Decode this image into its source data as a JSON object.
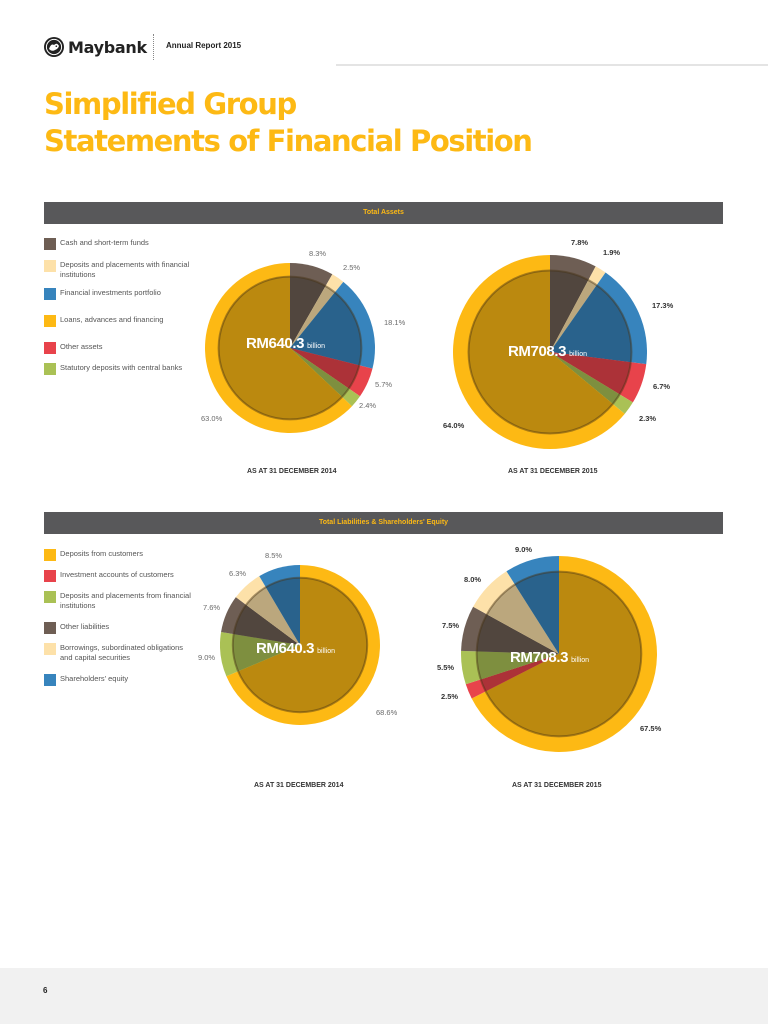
{
  "header": {
    "brand": "Maybank",
    "report": "Annual Report 2015"
  },
  "title": {
    "line1": "Simplified Group",
    "line2": "Statements of Financial Position"
  },
  "page_number": "6",
  "sections": [
    {
      "heading": "Total Assets",
      "legend": [
        {
          "label": "Cash and short-term funds",
          "color": "#6e5e54"
        },
        {
          "label": "Deposits and placements with financial institutions",
          "color": "#fde1a9"
        },
        {
          "label": "Financial investments portfolio",
          "color": "#3784bd"
        },
        {
          "label": "Loans, advances and financing",
          "color": "#fdb914"
        },
        {
          "label": "Other assets",
          "color": "#e8434b"
        },
        {
          "label": "Statutory deposits with central banks",
          "color": "#aac155"
        }
      ]
    },
    {
      "heading": "Total Liabilities & Shareholders' Equity",
      "legend": [
        {
          "label": "Deposits from customers",
          "color": "#fdb914"
        },
        {
          "label": "Investment accounts of customers",
          "color": "#e8434b"
        },
        {
          "label": "Deposits and placements from financial institutions",
          "color": "#aac155"
        },
        {
          "label": "Other liabilities",
          "color": "#6e5e54"
        },
        {
          "label": "Borrowings, subordinated obligations and capital securities",
          "color": "#fde1a9"
        },
        {
          "label": "Shareholders' equity",
          "color": "#3784bd"
        }
      ]
    }
  ],
  "chart_data": [
    {
      "type": "pie",
      "group": "Total Assets",
      "caption": "AS AT 31 DECEMBER 2014",
      "total": "RM640.3",
      "unit": "billion",
      "slices": [
        {
          "label": "Cash and short-term funds",
          "value": 8.3,
          "text": "8.3%",
          "color": "#6e5e54"
        },
        {
          "label": "Deposits and placements with financial institutions",
          "value": 2.5,
          "text": "2.5%",
          "color": "#fde1a9"
        },
        {
          "label": "Financial investments portfolio",
          "value": 18.1,
          "text": "18.1%",
          "color": "#3784bd"
        },
        {
          "label": "Other assets",
          "value": 5.7,
          "text": "5.7%",
          "color": "#e8434b"
        },
        {
          "label": "Statutory deposits with central banks",
          "value": 2.4,
          "text": "2.4%",
          "color": "#aac155"
        },
        {
          "label": "Loans, advances and financing",
          "value": 63.0,
          "text": "63.0%",
          "color": "#fdb914"
        }
      ]
    },
    {
      "type": "pie",
      "group": "Total Assets",
      "caption": "AS AT 31 DECEMBER 2015",
      "total": "RM708.3",
      "unit": "billion",
      "slices": [
        {
          "label": "Cash and short-term funds",
          "value": 7.8,
          "text": "7.8%",
          "color": "#6e5e54"
        },
        {
          "label": "Deposits and placements with financial institutions",
          "value": 1.9,
          "text": "1.9%",
          "color": "#fde1a9"
        },
        {
          "label": "Financial investments portfolio",
          "value": 17.3,
          "text": "17.3%",
          "color": "#3784bd"
        },
        {
          "label": "Other assets",
          "value": 6.7,
          "text": "6.7%",
          "color": "#e8434b"
        },
        {
          "label": "Statutory deposits with central banks",
          "value": 2.3,
          "text": "2.3%",
          "color": "#aac155"
        },
        {
          "label": "Loans, advances and financing",
          "value": 64.0,
          "text": "64.0%",
          "color": "#fdb914"
        }
      ]
    },
    {
      "type": "pie",
      "group": "Total Liabilities & Shareholders' Equity",
      "caption": "AS AT 31 DECEMBER 2014",
      "total": "RM640.3",
      "unit": "billion",
      "slices": [
        {
          "label": "Deposits from customers",
          "value": 68.6,
          "text": "68.6%",
          "color": "#fdb914"
        },
        {
          "label": "Deposits and placements from financial institutions",
          "value": 9.0,
          "text": "9.0%",
          "color": "#aac155"
        },
        {
          "label": "Other liabilities",
          "value": 7.6,
          "text": "7.6%",
          "color": "#6e5e54"
        },
        {
          "label": "Borrowings, subordinated obligations and capital securities",
          "value": 6.3,
          "text": "6.3%",
          "color": "#fde1a9"
        },
        {
          "label": "Shareholders' equity",
          "value": 8.5,
          "text": "8.5%",
          "color": "#3784bd"
        }
      ]
    },
    {
      "type": "pie",
      "group": "Total Liabilities & Shareholders' Equity",
      "caption": "AS AT 31 DECEMBER 2015",
      "total": "RM708.3",
      "unit": "billion",
      "slices": [
        {
          "label": "Deposits from customers",
          "value": 67.5,
          "text": "67.5%",
          "color": "#fdb914"
        },
        {
          "label": "Investment accounts of customers",
          "value": 2.5,
          "text": "2.5%",
          "color": "#e8434b"
        },
        {
          "label": "Deposits and placements from financial institutions",
          "value": 5.5,
          "text": "5.5%",
          "color": "#aac155"
        },
        {
          "label": "Other liabilities",
          "value": 7.5,
          "text": "7.5%",
          "color": "#6e5e54"
        },
        {
          "label": "Borrowings, subordinated obligations and capital securities",
          "value": 8.0,
          "text": "8.0%",
          "color": "#fde1a9"
        },
        {
          "label": "Shareholders' equity",
          "value": 9.0,
          "text": "9.0%",
          "color": "#3784bd"
        }
      ]
    }
  ]
}
